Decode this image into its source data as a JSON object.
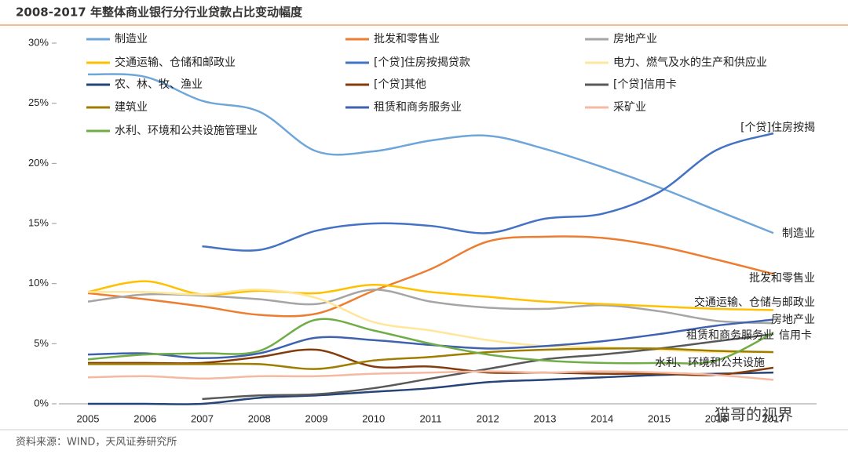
{
  "chart_data": {
    "type": "line",
    "title": "2008-2017 年整体商业银行分行业贷款占比变动幅度",
    "source": "资料来源：WIND，天风证券研究所",
    "watermark": "猫哥的视界",
    "categories": [
      "2005",
      "2006",
      "2007",
      "2008",
      "2009",
      "2010",
      "2011",
      "2012",
      "2013",
      "2014",
      "2015",
      "2016",
      "2017"
    ],
    "ylim": [
      0,
      30
    ],
    "yticks": [
      {
        "value": 0,
        "label": "0%"
      },
      {
        "value": 5,
        "label": "5%"
      },
      {
        "value": 10,
        "label": "10%"
      },
      {
        "value": 15,
        "label": "15%"
      },
      {
        "value": 20,
        "label": "20%"
      },
      {
        "value": 25,
        "label": "25%"
      },
      {
        "value": 30,
        "label": "30%"
      }
    ],
    "grid": false,
    "legend": "top",
    "series": [
      {
        "name": "制造业",
        "color": "#6ea6da",
        "values": [
          27.4,
          27.2,
          25.2,
          24.3,
          21.0,
          21.0,
          21.9,
          22.3,
          21.2,
          19.7,
          18.0,
          16.1,
          14.2
        ]
      },
      {
        "name": "批发和零售业",
        "color": "#ed7d31",
        "values": [
          9.2,
          8.7,
          8.1,
          7.4,
          7.5,
          9.4,
          11.2,
          13.5,
          13.9,
          13.8,
          13.1,
          12.0,
          10.8
        ]
      },
      {
        "name": "房地产业",
        "color": "#a5a5a5",
        "values": [
          8.5,
          9.1,
          9.0,
          8.7,
          8.3,
          9.5,
          8.5,
          8.0,
          7.9,
          8.2,
          7.7,
          6.9,
          6.7
        ]
      },
      {
        "name": "交通运输、仓储和邮政业",
        "color": "#ffc000",
        "values": [
          9.3,
          10.2,
          9.1,
          9.4,
          9.2,
          9.9,
          9.3,
          8.9,
          8.5,
          8.3,
          8.1,
          7.9,
          7.8
        ]
      },
      {
        "name": "[个贷]住房按揭贷款",
        "color": "#4472c4",
        "values": [
          null,
          null,
          13.1,
          12.8,
          14.4,
          15.0,
          14.8,
          14.2,
          15.4,
          15.8,
          17.6,
          21.1,
          22.5
        ]
      },
      {
        "name": "电力、燃气及水的生产和供应业",
        "color": "#ffe699",
        "values": [
          9.3,
          9.3,
          9.1,
          9.5,
          8.8,
          6.8,
          6.1,
          5.3,
          4.8,
          4.7,
          4.5,
          4.3,
          4.3
        ]
      },
      {
        "name": "农、林、牧、渔业",
        "color": "#264478",
        "values": [
          0,
          0,
          0,
          0.5,
          0.7,
          1.0,
          1.3,
          1.8,
          2.0,
          2.2,
          2.4,
          2.5,
          2.6
        ]
      },
      {
        "name": "[个贷]其他",
        "color": "#843c0c",
        "values": [
          3.4,
          3.4,
          3.4,
          3.9,
          4.5,
          3.1,
          3.1,
          2.6,
          2.6,
          2.5,
          2.5,
          2.4,
          3.0
        ]
      },
      {
        "name": "[个贷]信用卡",
        "color": "#595959",
        "values": [
          null,
          null,
          0.4,
          0.7,
          0.8,
          1.3,
          2.1,
          2.9,
          3.7,
          4.1,
          4.6,
          5.2,
          5.8
        ]
      },
      {
        "name": "建筑业",
        "color": "#9e7d00",
        "values": [
          3.3,
          3.3,
          3.3,
          3.3,
          2.9,
          3.6,
          3.9,
          4.3,
          4.5,
          4.6,
          4.6,
          4.4,
          4.3
        ]
      },
      {
        "name": "租赁和商务服务业",
        "color": "#3f62b0",
        "values": [
          4.1,
          4.2,
          3.8,
          4.2,
          5.5,
          5.3,
          4.9,
          4.6,
          4.8,
          5.2,
          5.8,
          6.5,
          7.0
        ]
      },
      {
        "name": "采矿业",
        "color": "#f4b9a0",
        "values": [
          2.2,
          2.3,
          2.1,
          2.3,
          2.3,
          2.5,
          2.6,
          2.7,
          2.6,
          2.7,
          2.6,
          2.4,
          2.0
        ]
      },
      {
        "name": "水利、环境和公共设施管理业",
        "color": "#70ad47",
        "values": [
          3.7,
          4.1,
          4.2,
          4.4,
          7.0,
          6.1,
          5.0,
          4.1,
          3.6,
          3.4,
          3.4,
          3.6,
          5.9
        ]
      }
    ],
    "annotations": [
      "[个贷]住房按揭",
      "制造业",
      "批发和零售业",
      "交通运输、仓储与邮政业",
      "房地产业",
      "租赁和商务服务业",
      "信用卡",
      "水利、环境和公共设施"
    ]
  }
}
